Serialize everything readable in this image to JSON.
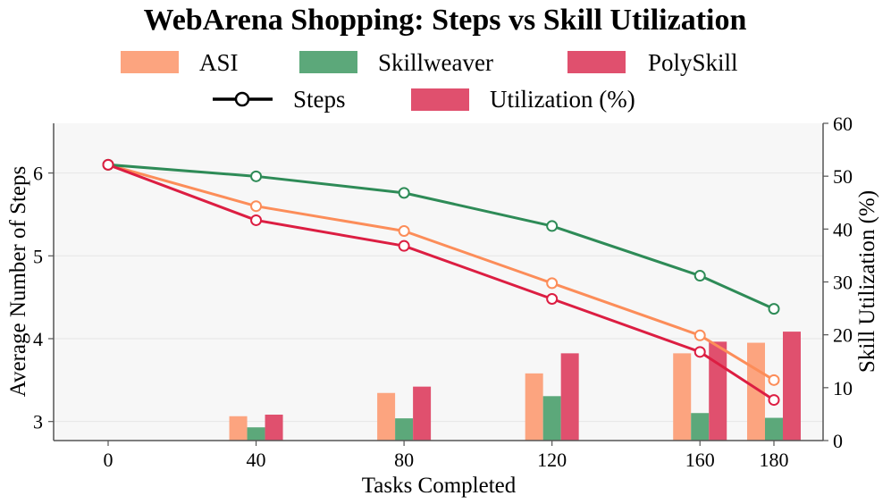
{
  "chart_data": {
    "type": "bar+line",
    "title": "WebArena Shopping: Steps vs Skill Utilization",
    "xlabel": "Tasks Completed",
    "ylabel_left": "Average Number of Steps",
    "ylabel_right": "Skill Utilization (%)",
    "x": [
      0,
      40,
      80,
      120,
      160,
      180
    ],
    "x_tick_labels": [
      "0",
      "40",
      "80",
      "120",
      "160",
      "180"
    ],
    "y_left_ticks": [
      "3",
      "4",
      "5",
      "6"
    ],
    "y_left_lim": [
      2.77,
      6.6
    ],
    "y_right_ticks": [
      "0",
      "10",
      "20",
      "30",
      "40",
      "50",
      "60"
    ],
    "y_right_lim": [
      0,
      60
    ],
    "series": [
      {
        "name": "ASI",
        "color": "#fc8d59",
        "bar_color": "#fca47f",
        "steps": [
          6.1,
          5.6,
          5.3,
          4.67,
          4.04,
          3.5
        ],
        "utilization": [
          null,
          4.6,
          9.0,
          12.7,
          16.5,
          18.5
        ]
      },
      {
        "name": "Skillweaver",
        "color": "#2e8b57",
        "bar_color": "#5ca87a",
        "steps": [
          6.1,
          5.96,
          5.76,
          5.36,
          4.76,
          4.36
        ],
        "utilization": [
          null,
          2.5,
          4.2,
          8.4,
          5.2,
          4.3
        ]
      },
      {
        "name": "PolySkill",
        "color": "#dc1e42",
        "bar_color": "#e0506e",
        "steps": [
          6.1,
          5.43,
          5.12,
          4.48,
          3.84,
          3.26
        ],
        "utilization": [
          null,
          4.9,
          10.2,
          16.5,
          18.7,
          20.6
        ]
      }
    ],
    "legend": {
      "placement": "top",
      "method_entries": [
        "ASI",
        "Skillweaver",
        "PolySkill"
      ],
      "type_entries": [
        "Steps",
        "Utilization (%)"
      ]
    },
    "grid": true
  }
}
